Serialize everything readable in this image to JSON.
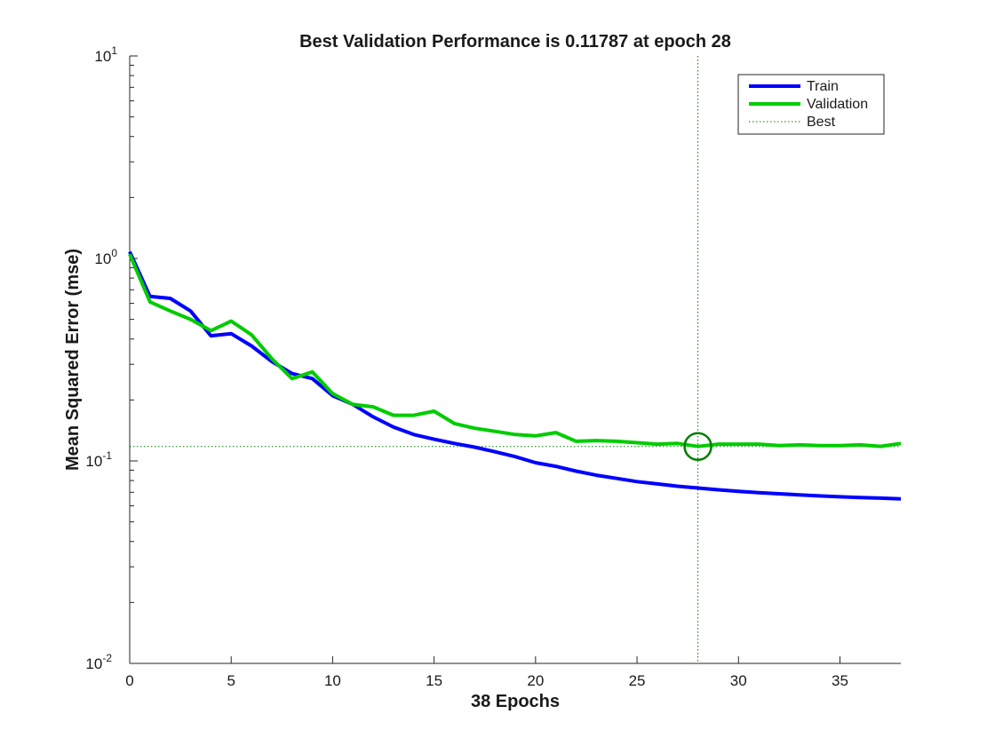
{
  "chart_data": {
    "type": "line",
    "title": "Best Validation Performance is 0.11787 at epoch 28",
    "xlabel": "38 Epochs",
    "ylabel": "Mean Squared Error  (mse)",
    "xlim": [
      0,
      38
    ],
    "ylim": [
      0.01,
      10
    ],
    "yscale": "log",
    "grid": false,
    "legend_position": "top-right",
    "x_ticks": [
      0,
      5,
      10,
      15,
      20,
      25,
      30,
      35
    ],
    "y_ticks": [
      {
        "value": 0.01,
        "base": "10",
        "exp": "-2"
      },
      {
        "value": 0.1,
        "base": "10",
        "exp": "-1"
      },
      {
        "value": 1,
        "base": "10",
        "exp": "0"
      },
      {
        "value": 10,
        "base": "10",
        "exp": "1"
      }
    ],
    "x": [
      0,
      1,
      2,
      3,
      4,
      5,
      6,
      7,
      8,
      9,
      10,
      11,
      12,
      13,
      14,
      15,
      16,
      17,
      18,
      19,
      20,
      21,
      22,
      23,
      24,
      25,
      26,
      27,
      28,
      29,
      30,
      31,
      32,
      33,
      34,
      35,
      36,
      37,
      38
    ],
    "series": [
      {
        "name": "Train",
        "color": "#0000ff",
        "values": [
          1.08,
          0.65,
          0.635,
          0.55,
          0.415,
          0.425,
          0.37,
          0.31,
          0.27,
          0.255,
          0.21,
          0.19,
          0.165,
          0.147,
          0.135,
          0.128,
          0.122,
          0.117,
          0.111,
          0.105,
          0.098,
          0.094,
          0.089,
          0.085,
          0.082,
          0.079,
          0.077,
          0.075,
          0.0735,
          0.072,
          0.0708,
          0.0697,
          0.0688,
          0.068,
          0.0672,
          0.0665,
          0.0659,
          0.0655,
          0.065
        ]
      },
      {
        "name": "Validation",
        "color": "#00cc00",
        "values": [
          1.05,
          0.61,
          0.55,
          0.5,
          0.44,
          0.49,
          0.42,
          0.32,
          0.255,
          0.275,
          0.215,
          0.19,
          0.185,
          0.168,
          0.168,
          0.176,
          0.153,
          0.145,
          0.14,
          0.135,
          0.133,
          0.138,
          0.125,
          0.126,
          0.125,
          0.123,
          0.121,
          0.122,
          0.11787,
          0.121,
          0.121,
          0.121,
          0.119,
          0.12,
          0.119,
          0.119,
          0.12,
          0.118,
          0.122
        ]
      }
    ],
    "best": {
      "name": "Best",
      "epoch": 28,
      "value": 0.11787,
      "color": "#007f00"
    }
  }
}
